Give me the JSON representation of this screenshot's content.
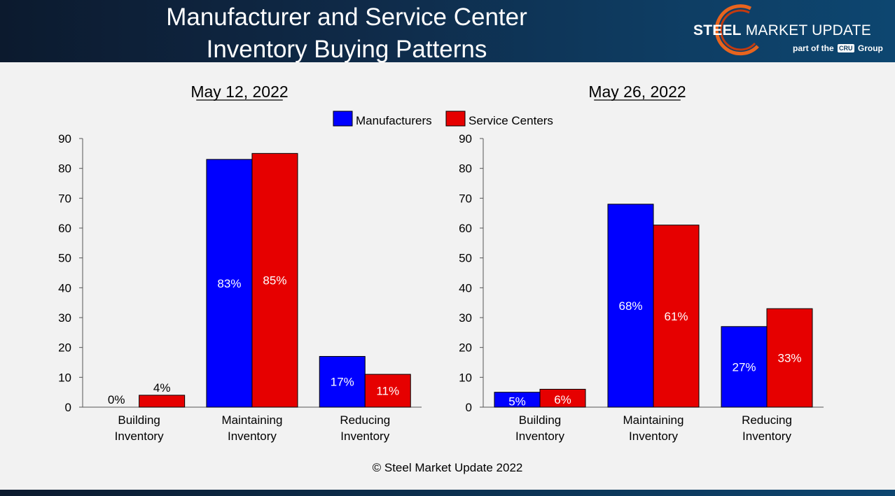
{
  "header": {
    "title_line1": "Manufacturer and Service Center",
    "title_line2": "Inventory Buying Patterns",
    "brand_bold": "STEEL",
    "brand_rest": " MARKET UPDATE",
    "sub_prefix": "part of the",
    "sub_badge": "CRU",
    "sub_suffix": "Group"
  },
  "legend": {
    "manufacturers": "Manufacturers",
    "service_centers": "Service Centers"
  },
  "colors": {
    "manufacturers": "#0000ff",
    "service_centers": "#e60000"
  },
  "footer": {
    "copyright": "© Steel Market Update 2022"
  },
  "chart_data": [
    {
      "type": "bar",
      "title": "May 12, 2022",
      "categories": [
        [
          "Building",
          "Inventory"
        ],
        [
          "Maintaining",
          "Inventory"
        ],
        [
          "Reducing",
          "Inventory"
        ]
      ],
      "series": [
        {
          "name": "Manufacturers",
          "values": [
            0,
            83,
            17
          ],
          "labels": [
            "0%",
            "83%",
            "17%"
          ]
        },
        {
          "name": "Service Centers",
          "values": [
            4,
            85,
            11
          ],
          "labels": [
            "4%",
            "85%",
            "11%"
          ]
        }
      ],
      "ylim": [
        0,
        90
      ],
      "yticks": [
        0,
        10,
        20,
        30,
        40,
        50,
        60,
        70,
        80,
        90
      ]
    },
    {
      "type": "bar",
      "title": "May 26, 2022",
      "categories": [
        [
          "Building",
          "Inventory"
        ],
        [
          "Maintaining",
          "Inventory"
        ],
        [
          "Reducing",
          "Inventory"
        ]
      ],
      "series": [
        {
          "name": "Manufacturers",
          "values": [
            5,
            68,
            27
          ],
          "labels": [
            "5%",
            "68%",
            "27%"
          ]
        },
        {
          "name": "Service Centers",
          "values": [
            6,
            61,
            33
          ],
          "labels": [
            "6%",
            "61%",
            "33%"
          ]
        }
      ],
      "ylim": [
        0,
        90
      ],
      "yticks": [
        0,
        10,
        20,
        30,
        40,
        50,
        60,
        70,
        80,
        90
      ]
    }
  ]
}
